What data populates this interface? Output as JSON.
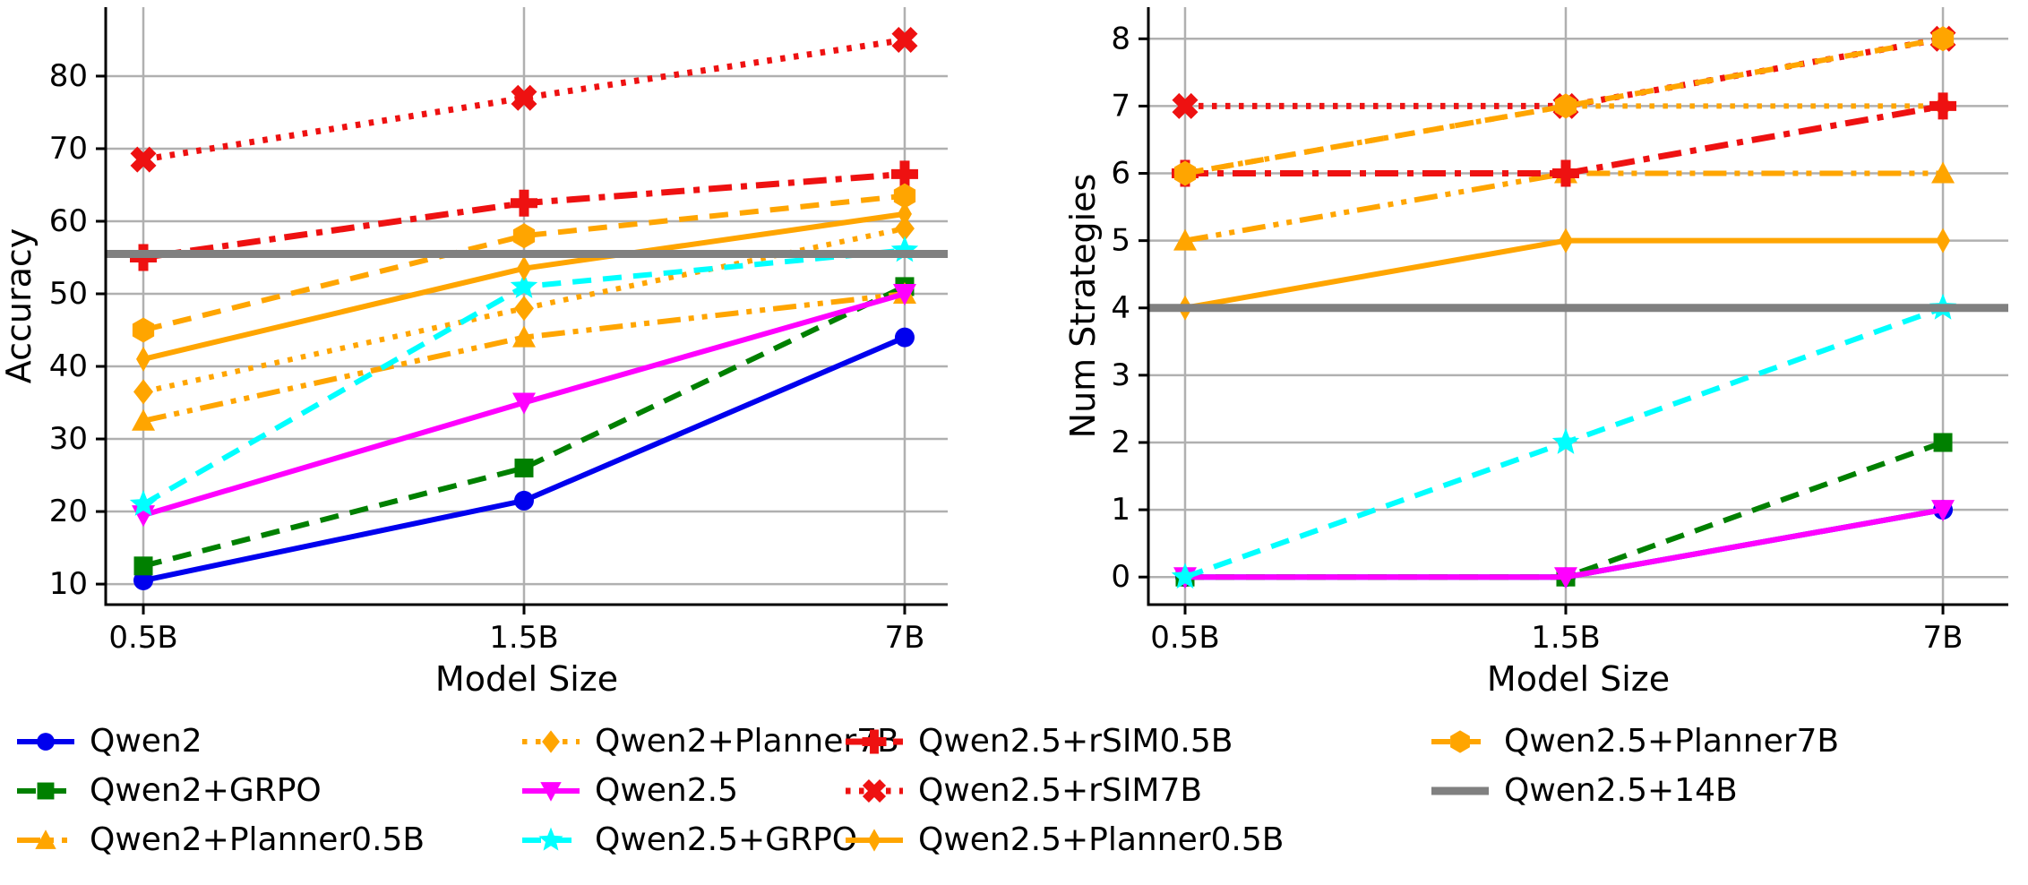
{
  "figure_title": "",
  "axis": {
    "xlabel": "Model Size",
    "categories": [
      "0.5B",
      "1.5B",
      "7B"
    ]
  },
  "chart_data": [
    {
      "type": "line",
      "title": "",
      "xlabel": "Model Size",
      "ylabel": "Accuracy",
      "categories": [
        "0.5B",
        "1.5B",
        "7B"
      ],
      "yticks": [
        10,
        20,
        30,
        40,
        50,
        60,
        70,
        80
      ],
      "ylim": [
        7.17,
        89.5
      ],
      "grid": true,
      "series": [
        {
          "name": "Qwen2",
          "values": [
            10.5,
            21.5,
            44
          ]
        },
        {
          "name": "Qwen2+GRPO",
          "values": [
            12.5,
            26,
            51
          ]
        },
        {
          "name": "Qwen2+Planner0.5B",
          "values": [
            32.5,
            44,
            50
          ]
        },
        {
          "name": "Qwen2+Planner7B",
          "values": [
            36.5,
            48,
            59
          ]
        },
        {
          "name": "Qwen2.5",
          "values": [
            19.5,
            35,
            50
          ]
        },
        {
          "name": "Qwen2.5+GRPO",
          "values": [
            21,
            51,
            56
          ]
        },
        {
          "name": "Qwen2.5+rSIM0.5B",
          "values": [
            55,
            62.5,
            66.5
          ]
        },
        {
          "name": "Qwen2.5+rSIM7B",
          "values": [
            68.5,
            77,
            85
          ]
        },
        {
          "name": "Qwen2.5+Planner0.5B",
          "values": [
            41,
            53.5,
            61
          ]
        },
        {
          "name": "Qwen2.5+Planner7B",
          "values": [
            45,
            58,
            63.5
          ]
        },
        {
          "name": "Qwen2.5+14B",
          "values": [
            55.5,
            55.5,
            55.5
          ],
          "hline": true
        }
      ]
    },
    {
      "type": "line",
      "title": "",
      "xlabel": "Model Size",
      "ylabel": "Num Strategies",
      "categories": [
        "0.5B",
        "1.5B",
        "7B"
      ],
      "yticks": [
        0,
        1,
        2,
        3,
        4,
        5,
        6,
        7,
        8
      ],
      "ylim": [
        -0.41,
        8.47
      ],
      "grid": true,
      "series": [
        {
          "name": "Qwen2",
          "values": [
            0,
            0,
            1
          ]
        },
        {
          "name": "Qwen2+GRPO",
          "values": [
            0,
            0,
            2
          ]
        },
        {
          "name": "Qwen2+Planner0.5B",
          "values": [
            5,
            6,
            6
          ]
        },
        {
          "name": "Qwen2+Planner7B",
          "values": [
            6,
            7,
            7
          ]
        },
        {
          "name": "Qwen2.5",
          "values": [
            0,
            0,
            1
          ]
        },
        {
          "name": "Qwen2.5+GRPO",
          "values": [
            0,
            2,
            4
          ]
        },
        {
          "name": "Qwen2.5+rSIM0.5B",
          "values": [
            6,
            6,
            7
          ]
        },
        {
          "name": "Qwen2.5+rSIM7B",
          "values": [
            7,
            7,
            8
          ]
        },
        {
          "name": "Qwen2.5+Planner0.5B",
          "values": [
            4,
            5,
            5
          ]
        },
        {
          "name": "Qwen2.5+Planner7B",
          "values": [
            6,
            7,
            8
          ]
        },
        {
          "name": "Qwen2.5+14B",
          "values": [
            4,
            4,
            4
          ],
          "hline": true
        }
      ]
    }
  ],
  "series_styles": {
    "Qwen2": {
      "color": "#0000ee",
      "linestyle": "solid",
      "marker": "circle",
      "linewidth": 6
    },
    "Qwen2+GRPO": {
      "color": "#008000",
      "linestyle": "dashed",
      "marker": "square",
      "linewidth": 6
    },
    "Qwen2+Planner0.5B": {
      "color": "#ffa500",
      "linestyle": "dashdotdot",
      "marker": "triangle-up",
      "linewidth": 6
    },
    "Qwen2+Planner7B": {
      "color": "#ffa500",
      "linestyle": "dotted",
      "marker": "diamond",
      "linewidth": 6
    },
    "Qwen2.5": {
      "color": "#ff00ff",
      "linestyle": "solid",
      "marker": "triangle-down",
      "linewidth": 6
    },
    "Qwen2.5+GRPO": {
      "color": "#00ffff",
      "linestyle": "dashed",
      "marker": "star",
      "linewidth": 6
    },
    "Qwen2.5+rSIM0.5B": {
      "color": "#ee1111",
      "linestyle": "dashdot",
      "marker": "plus",
      "linewidth": 7
    },
    "Qwen2.5+rSIM7B": {
      "color": "#ee1111",
      "linestyle": "dotted",
      "marker": "x",
      "linewidth": 7
    },
    "Qwen2.5+Planner0.5B": {
      "color": "#ffa500",
      "linestyle": "solid",
      "marker": "thin-diamond",
      "linewidth": 6
    },
    "Qwen2.5+Planner7B": {
      "color": "#ffa500",
      "linestyle": "dashed",
      "marker": "hexagon",
      "linewidth": 6
    },
    "Qwen2.5+14B": {
      "color": "#808080",
      "linestyle": "solid",
      "marker": "none",
      "linewidth": 9
    }
  },
  "legend": {
    "columns": [
      [
        "Qwen2",
        "Qwen2+GRPO",
        "Qwen2+Planner0.5B"
      ],
      [
        "Qwen2+Planner7B",
        "Qwen2.5",
        "Qwen2.5+GRPO"
      ],
      [
        "Qwen2.5+rSIM0.5B",
        "Qwen2.5+rSIM7B",
        "Qwen2.5+Planner0.5B"
      ],
      [
        "Qwen2.5+Planner7B",
        "Qwen2.5+14B"
      ]
    ]
  },
  "palette": {
    "gridline": "#b0b0b0",
    "spine": "#000000",
    "text": "#000000",
    "background": "#ffffff"
  }
}
